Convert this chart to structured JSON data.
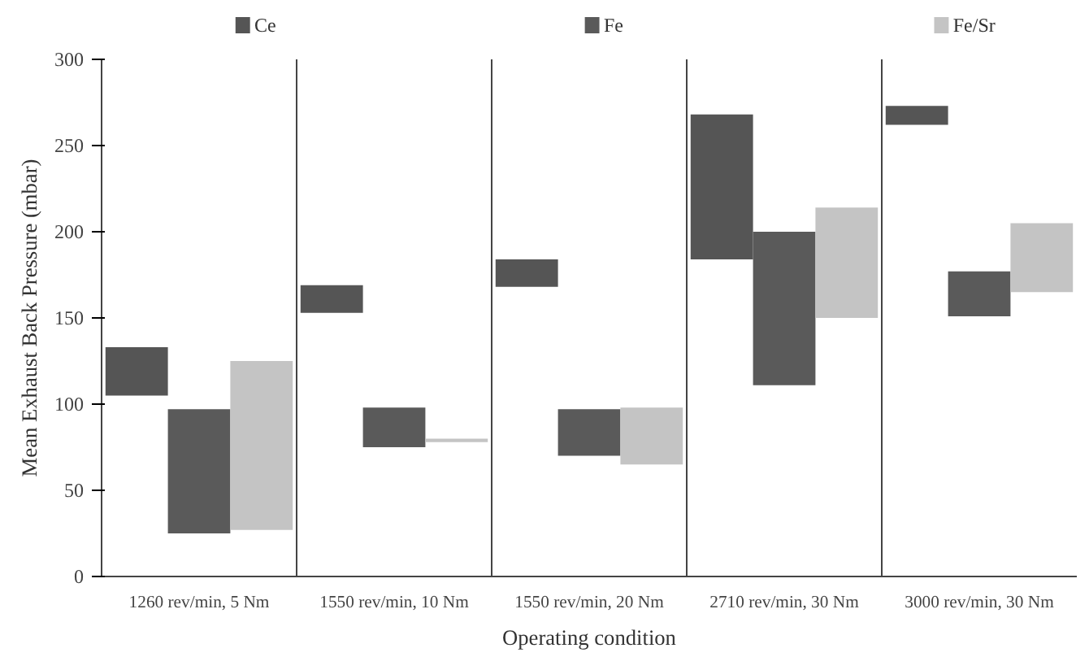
{
  "chart_data": {
    "type": "bar",
    "xlabel": "Operating condition",
    "ylabel": "Mean Exhaust Back Pressure (mbar)",
    "categories": [
      "1260 rev/min, 5 Nm",
      "1550 rev/min, 10 Nm",
      "1550 rev/min, 20 Nm",
      "2710 rev/min, 30 Nm",
      "3000 rev/min, 30 Nm"
    ],
    "series": [
      {
        "name": "Ce",
        "color": "#555555",
        "base": [
          105,
          153,
          168,
          184,
          262
        ],
        "values": [
          28,
          16,
          16,
          84,
          11
        ]
      },
      {
        "name": "Fe",
        "color": "#5a5a5a",
        "base": [
          25,
          75,
          70,
          111,
          151
        ],
        "values": [
          72,
          23,
          27,
          89,
          26
        ]
      },
      {
        "name": "Fe/Sr",
        "color": "#c4c4c4",
        "base": [
          27,
          78,
          65,
          150,
          165
        ],
        "values": [
          98,
          2,
          33,
          64,
          40
        ]
      }
    ],
    "ylim": [
      0,
      300
    ],
    "yticks": [
      0,
      50,
      100,
      150,
      200,
      250,
      300
    ],
    "grid": "x",
    "legend": "top"
  }
}
